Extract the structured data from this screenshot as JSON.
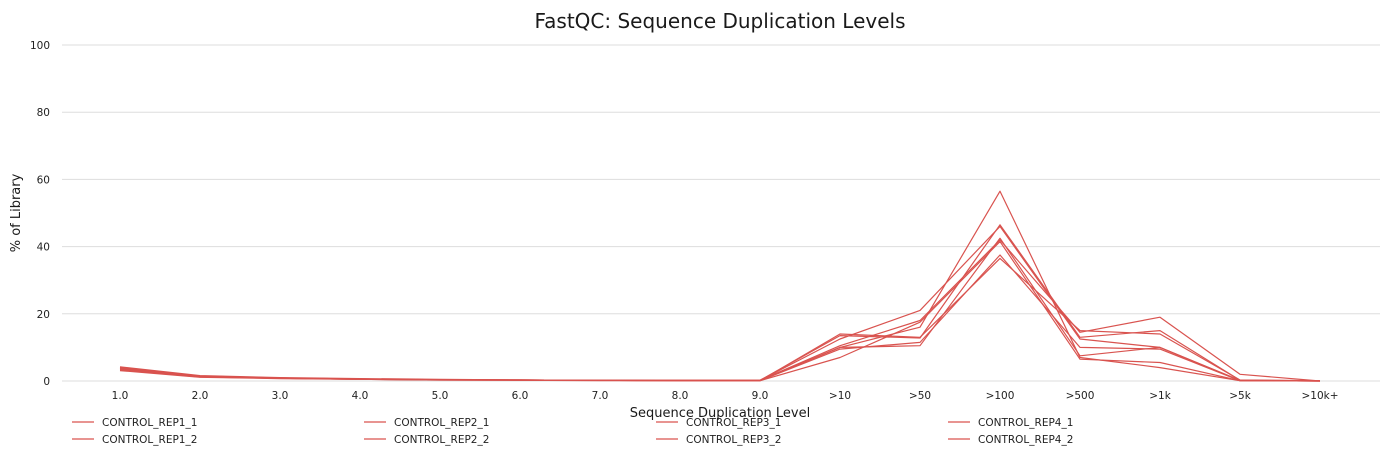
{
  "chart_data": {
    "type": "line",
    "title": "FastQC: Sequence Duplication Levels",
    "xlabel": "Sequence Duplication Level",
    "ylabel": "% of Library",
    "categories": [
      "1.0",
      "2.0",
      "3.0",
      "4.0",
      "5.0",
      "6.0",
      "7.0",
      "8.0",
      "9.0",
      ">10",
      ">50",
      ">100",
      ">500",
      ">1k",
      ">5k",
      ">10k+"
    ],
    "ylim": [
      0,
      100
    ],
    "yticks": [
      0,
      20,
      40,
      60,
      80,
      100
    ],
    "grid": true,
    "legend_position": "bottom",
    "series_color": "#d9534f",
    "series": [
      {
        "name": "CONTROL_REP1_1",
        "values": [
          4.2,
          1.6,
          1.0,
          0.7,
          0.5,
          0.3,
          0.2,
          0.2,
          0.2,
          13.5,
          12.8,
          46.5,
          13.0,
          15.0,
          0.2,
          0.1
        ]
      },
      {
        "name": "CONTROL_REP1_2",
        "values": [
          4.0,
          1.5,
          0.9,
          0.6,
          0.4,
          0.3,
          0.2,
          0.2,
          0.2,
          10.0,
          16.0,
          56.5,
          7.0,
          4.0,
          0.1,
          0.0
        ]
      },
      {
        "name": "CONTROL_REP2_1",
        "values": [
          3.8,
          1.4,
          0.9,
          0.6,
          0.4,
          0.3,
          0.2,
          0.2,
          0.2,
          10.5,
          18.0,
          42.0,
          14.5,
          19.0,
          2.0,
          0.0
        ]
      },
      {
        "name": "CONTROL_REP2_2",
        "values": [
          3.5,
          1.3,
          0.8,
          0.5,
          0.4,
          0.3,
          0.2,
          0.1,
          0.1,
          14.0,
          13.0,
          36.5,
          15.0,
          14.0,
          0.3,
          0.1
        ]
      },
      {
        "name": "CONTROL_REP3_1",
        "values": [
          3.9,
          1.5,
          0.9,
          0.6,
          0.4,
          0.3,
          0.2,
          0.2,
          0.2,
          12.5,
          21.0,
          46.0,
          12.5,
          10.0,
          0.2,
          0.0
        ]
      },
      {
        "name": "CONTROL_REP3_2",
        "values": [
          3.6,
          1.3,
          0.8,
          0.5,
          0.4,
          0.3,
          0.2,
          0.1,
          0.1,
          10.0,
          10.5,
          42.5,
          7.5,
          10.0,
          0.1,
          0.0
        ]
      },
      {
        "name": "CONTROL_REP4_1",
        "values": [
          3.3,
          1.2,
          0.8,
          0.5,
          0.3,
          0.2,
          0.2,
          0.1,
          0.1,
          9.5,
          11.5,
          37.5,
          10.0,
          9.5,
          0.1,
          0.0
        ]
      },
      {
        "name": "CONTROL_REP4_2",
        "values": [
          3.1,
          1.1,
          0.7,
          0.5,
          0.3,
          0.2,
          0.1,
          0.1,
          0.1,
          7.0,
          17.5,
          41.5,
          6.5,
          5.5,
          0.1,
          0.0
        ]
      }
    ]
  }
}
